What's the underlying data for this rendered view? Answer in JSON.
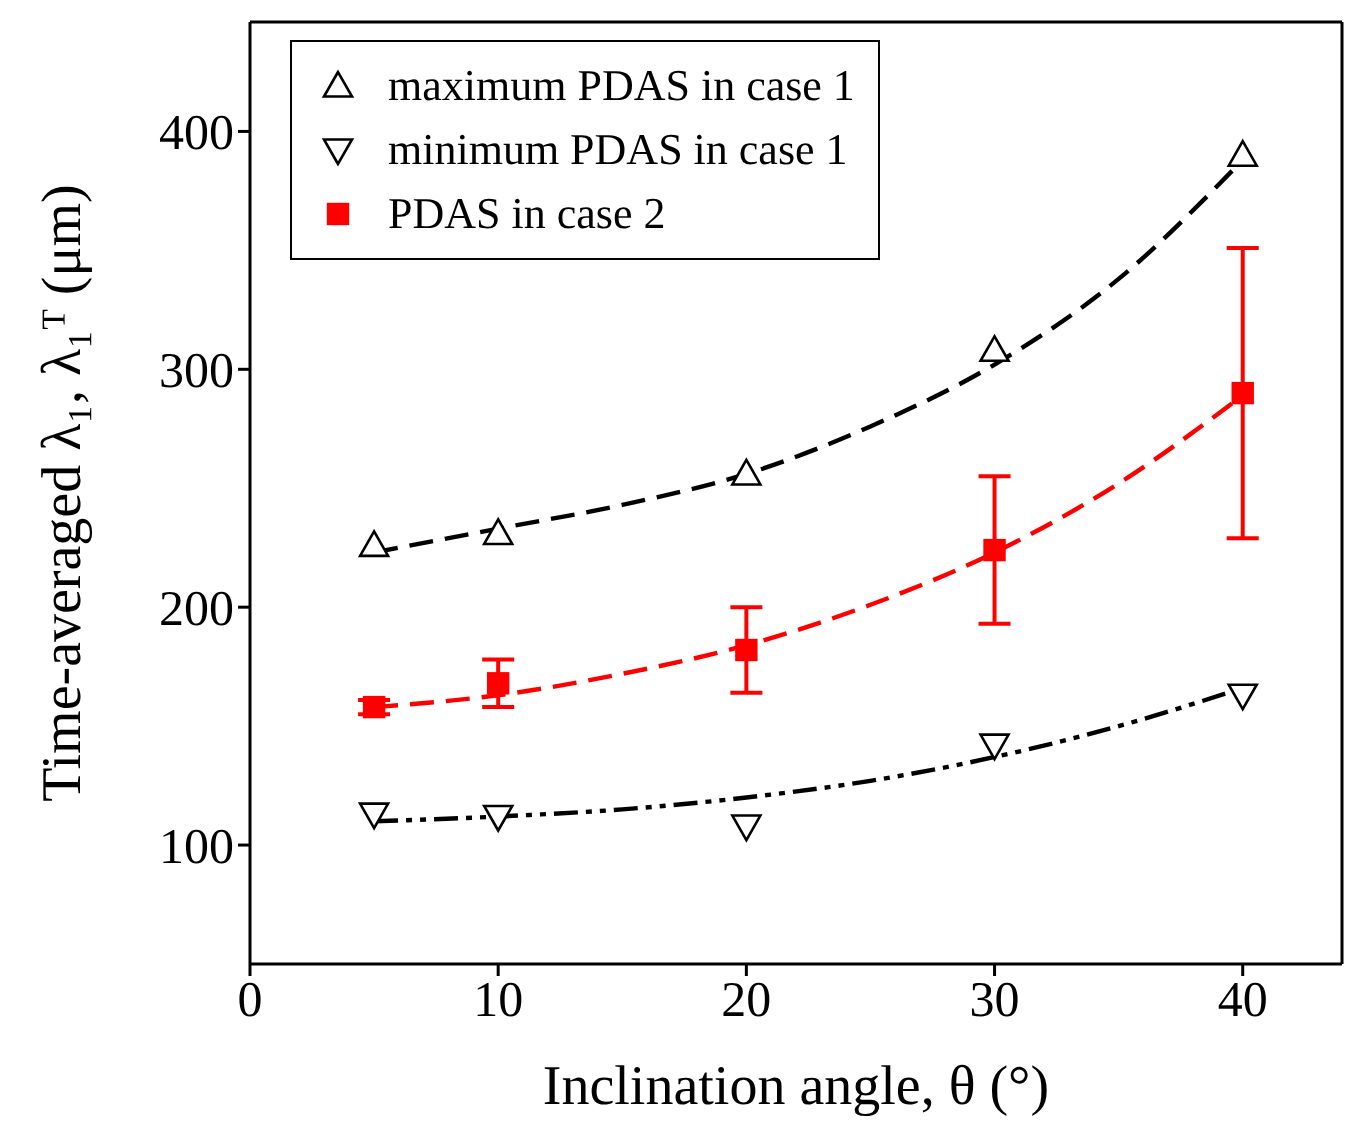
{
  "chart_data": {
    "type": "scatter",
    "xlabel": "Inclination angle, θ (°)",
    "ylabel": "Time-averaged λ₁, λ₁ᵀ (μm)",
    "x": [
      5,
      10,
      20,
      30,
      40
    ],
    "xlim": [
      0,
      44
    ],
    "xticks": [
      0,
      10,
      20,
      30,
      40
    ],
    "ylim": [
      50,
      446
    ],
    "yticks": [
      100,
      200,
      300,
      400
    ],
    "legend": "top left",
    "series": [
      {
        "name": "maximum PDAS in case 1",
        "marker": "triangle",
        "color": "#000000",
        "values": [
          226,
          231,
          256,
          308,
          390
        ]
      },
      {
        "name": "minimum PDAS in case 1",
        "marker": "triangle-down",
        "color": "#000000",
        "values": [
          113,
          112,
          108,
          142,
          163
        ]
      },
      {
        "name": "PDAS in case 2",
        "marker": "square",
        "color": "#ff0000",
        "values": [
          158,
          168,
          182,
          224,
          290
        ],
        "errors": [
          3,
          10,
          18,
          31,
          61
        ]
      },
      {
        "type": "line",
        "color": "#000000",
        "line_style": "dashed",
        "x": [
          5,
          10,
          15,
          20,
          25,
          30,
          35,
          40
        ],
        "values": [
          223,
          233,
          243,
          256,
          276,
          302,
          338,
          388
        ]
      },
      {
        "type": "line",
        "color": "#000000",
        "line_style": "dotted",
        "x": [
          5,
          10,
          15,
          20,
          25,
          30,
          35,
          40
        ],
        "values": [
          110,
          112,
          115,
          120,
          127,
          137,
          150,
          166
        ]
      },
      {
        "type": "line",
        "color": "#ff0000",
        "line_style": "dashed",
        "x": [
          5,
          10,
          15,
          20,
          25,
          30,
          35,
          40
        ],
        "values": [
          158,
          163,
          172,
          184,
          201,
          223,
          252,
          289
        ]
      }
    ]
  }
}
